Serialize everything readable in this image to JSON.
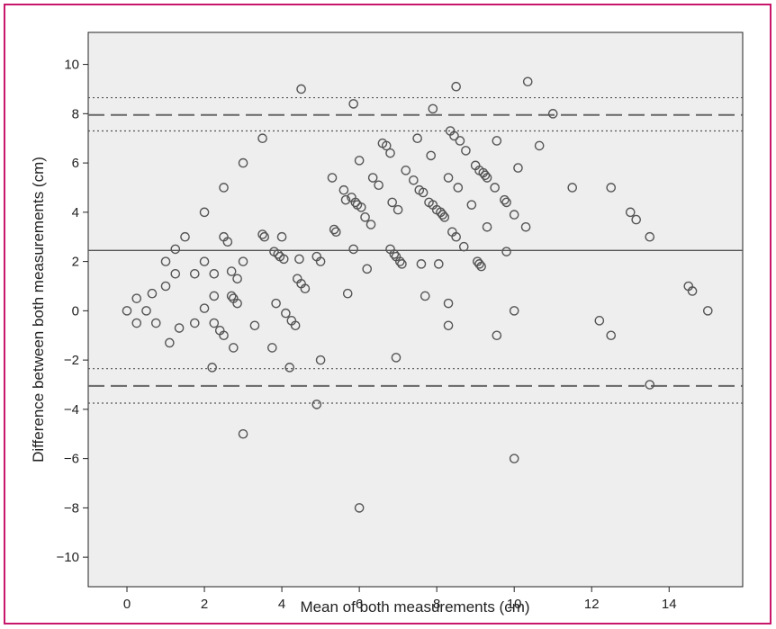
{
  "chart_data": {
    "type": "scatter",
    "title": "",
    "xlabel": "Mean of both measurements (cm)",
    "ylabel": "Difference between both measurements (cm)",
    "xlim": [
      -1.0,
      15.9
    ],
    "ylim": [
      -11.2,
      11.3
    ],
    "x_ticks": [
      0,
      2,
      4,
      6,
      8,
      10,
      12,
      14
    ],
    "y_ticks": [
      -10,
      -8,
      -6,
      -4,
      -2,
      0,
      2,
      4,
      6,
      8,
      10
    ],
    "grid": false,
    "legend": "none",
    "reference_lines": [
      {
        "kind": "mean-difference",
        "y": 2.45,
        "style": "solid"
      },
      {
        "kind": "upper-limit-of-agreement",
        "y": 7.95,
        "style": "dashed"
      },
      {
        "kind": "upper-limit-ci-high",
        "y": 8.65,
        "style": "dotted"
      },
      {
        "kind": "upper-limit-ci-low",
        "y": 7.3,
        "style": "dotted"
      },
      {
        "kind": "lower-limit-of-agreement",
        "y": -3.05,
        "style": "dashed"
      },
      {
        "kind": "lower-limit-ci-high",
        "y": -2.35,
        "style": "dotted"
      },
      {
        "kind": "lower-limit-ci-low",
        "y": -3.75,
        "style": "dotted"
      }
    ],
    "points": [
      [
        0,
        0
      ],
      [
        0.25,
        0.5
      ],
      [
        0.25,
        -0.5
      ],
      [
        0.5,
        0
      ],
      [
        0.65,
        0.7
      ],
      [
        0.75,
        -0.5
      ],
      [
        1,
        2
      ],
      [
        1,
        1
      ],
      [
        1.1,
        -1.3
      ],
      [
        1.25,
        2.5
      ],
      [
        1.25,
        1.5
      ],
      [
        1.35,
        -0.7
      ],
      [
        1.5,
        3
      ],
      [
        1.75,
        1.5
      ],
      [
        1.75,
        -0.5
      ],
      [
        2,
        4
      ],
      [
        2,
        2
      ],
      [
        2,
        0.1
      ],
      [
        2.2,
        -2.3
      ],
      [
        2.25,
        0.6
      ],
      [
        2.25,
        1.5
      ],
      [
        2.25,
        -0.5
      ],
      [
        2.4,
        -0.8
      ],
      [
        2.5,
        5
      ],
      [
        2.5,
        3
      ],
      [
        2.5,
        -1
      ],
      [
        2.6,
        2.8
      ],
      [
        2.7,
        1.6
      ],
      [
        2.7,
        0.6
      ],
      [
        2.75,
        0.5
      ],
      [
        2.75,
        -1.5
      ],
      [
        2.85,
        0.3
      ],
      [
        2.85,
        1.3
      ],
      [
        3,
        6
      ],
      [
        3,
        2
      ],
      [
        3,
        -5
      ],
      [
        3.3,
        -0.6
      ],
      [
        3.5,
        7
      ],
      [
        3.5,
        3.1
      ],
      [
        3.55,
        3
      ],
      [
        3.75,
        -1.5
      ],
      [
        3.8,
        2.4
      ],
      [
        3.85,
        0.3
      ],
      [
        3.9,
        2.3
      ],
      [
        3.95,
        2.2
      ],
      [
        4,
        3
      ],
      [
        4.05,
        2.1
      ],
      [
        4.1,
        -0.1
      ],
      [
        4.2,
        -2.3
      ],
      [
        4.25,
        -0.4
      ],
      [
        4.35,
        -0.6
      ],
      [
        4.4,
        1.3
      ],
      [
        4.45,
        2.1
      ],
      [
        4.5,
        9
      ],
      [
        4.5,
        1.1
      ],
      [
        4.6,
        0.9
      ],
      [
        4.9,
        -3.8
      ],
      [
        4.9,
        2.2
      ],
      [
        5,
        2
      ],
      [
        5,
        -2
      ],
      [
        5.3,
        5.4
      ],
      [
        5.35,
        3.3
      ],
      [
        5.4,
        3.2
      ],
      [
        5.6,
        4.9
      ],
      [
        5.65,
        4.5
      ],
      [
        5.7,
        0.7
      ],
      [
        5.8,
        4.6
      ],
      [
        5.85,
        2.5
      ],
      [
        5.85,
        8.4
      ],
      [
        5.9,
        4.4
      ],
      [
        5.95,
        4.3
      ],
      [
        6,
        6.1
      ],
      [
        6,
        -8
      ],
      [
        6.05,
        4.2
      ],
      [
        6.15,
        3.8
      ],
      [
        6.2,
        1.7
      ],
      [
        6.3,
        3.5
      ],
      [
        6.35,
        5.4
      ],
      [
        6.5,
        5.1
      ],
      [
        6.6,
        6.8
      ],
      [
        6.7,
        6.7
      ],
      [
        6.8,
        6.4
      ],
      [
        6.8,
        2.5
      ],
      [
        6.85,
        4.4
      ],
      [
        6.9,
        2.3
      ],
      [
        6.95,
        2.2
      ],
      [
        6.95,
        -1.9
      ],
      [
        7,
        4.1
      ],
      [
        7.05,
        2
      ],
      [
        7.1,
        1.9
      ],
      [
        7.2,
        5.7
      ],
      [
        7.4,
        5.3
      ],
      [
        7.5,
        7
      ],
      [
        7.55,
        4.9
      ],
      [
        7.6,
        1.9
      ],
      [
        7.65,
        4.8
      ],
      [
        7.7,
        0.6
      ],
      [
        7.8,
        4.4
      ],
      [
        7.85,
        6.3
      ],
      [
        7.9,
        4.3
      ],
      [
        7.9,
        8.2
      ],
      [
        8,
        4.1
      ],
      [
        8.05,
        1.9
      ],
      [
        8.1,
        4
      ],
      [
        8.15,
        3.9
      ],
      [
        8.2,
        3.8
      ],
      [
        8.3,
        5.4
      ],
      [
        8.3,
        0.3
      ],
      [
        8.3,
        -0.6
      ],
      [
        8.35,
        7.3
      ],
      [
        8.4,
        3.2
      ],
      [
        8.45,
        7.1
      ],
      [
        8.5,
        9.1
      ],
      [
        8.5,
        3
      ],
      [
        8.55,
        5
      ],
      [
        8.6,
        6.9
      ],
      [
        8.7,
        2.6
      ],
      [
        8.75,
        6.5
      ],
      [
        8.9,
        4.3
      ],
      [
        9,
        5.9
      ],
      [
        9.05,
        2
      ],
      [
        9.1,
        5.7
      ],
      [
        9.1,
        1.9
      ],
      [
        9.15,
        1.8
      ],
      [
        9.2,
        5.6
      ],
      [
        9.25,
        5.5
      ],
      [
        9.3,
        5.4
      ],
      [
        9.3,
        3.4
      ],
      [
        9.5,
        5
      ],
      [
        9.55,
        6.9
      ],
      [
        9.55,
        -1
      ],
      [
        9.75,
        4.5
      ],
      [
        9.8,
        4.4
      ],
      [
        9.8,
        2.4
      ],
      [
        10,
        3.9
      ],
      [
        10,
        0
      ],
      [
        10,
        -6
      ],
      [
        10.1,
        5.8
      ],
      [
        10.3,
        3.4
      ],
      [
        10.35,
        9.3
      ],
      [
        10.65,
        6.7
      ],
      [
        11,
        8
      ],
      [
        11.5,
        5
      ],
      [
        12.2,
        -0.4
      ],
      [
        12.5,
        5
      ],
      [
        12.5,
        -1
      ],
      [
        13,
        4
      ],
      [
        13.15,
        3.7
      ],
      [
        13.5,
        3
      ],
      [
        13.5,
        -3
      ],
      [
        14.5,
        1
      ],
      [
        14.6,
        0.8
      ],
      [
        15,
        0
      ]
    ]
  }
}
